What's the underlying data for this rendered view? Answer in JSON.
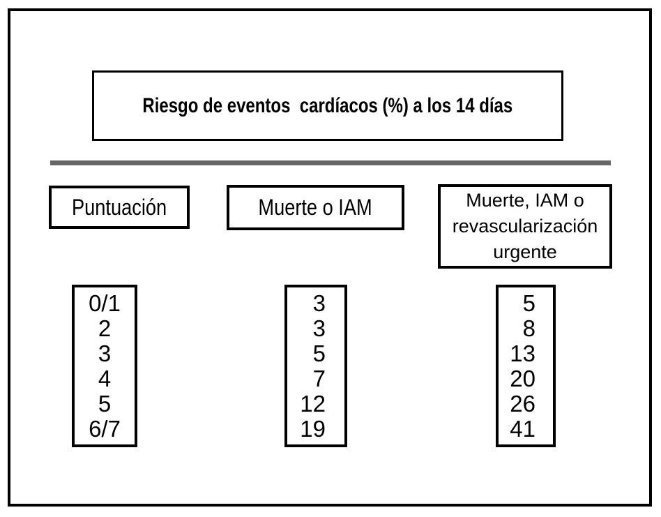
{
  "figure": {
    "description": "Boxed table figure: cardiac event risk percentages at 14 days by risk score",
    "colors": {
      "border": "#000000",
      "divider": "#666666",
      "background": "#ffffff",
      "text": "#000000"
    }
  },
  "chart_data": {
    "type": "table",
    "title": "Riesgo de eventos  cardíacos (%) a los 14 días",
    "columns": [
      {
        "header": "Puntuación",
        "values": [
          "0/1",
          "2",
          "3",
          "4",
          "5",
          "6/7"
        ]
      },
      {
        "header": "Muerte o IAM",
        "values": [
          "3",
          "3",
          "5",
          "7",
          "12",
          "19"
        ]
      },
      {
        "header": "Muerte, IAM o revascularización urgente",
        "values": [
          "5",
          "8",
          "13",
          "20",
          "26",
          "41"
        ]
      }
    ],
    "layout": {
      "legend": "none",
      "grid": "off",
      "rows": 6,
      "column_count": 3
    }
  }
}
